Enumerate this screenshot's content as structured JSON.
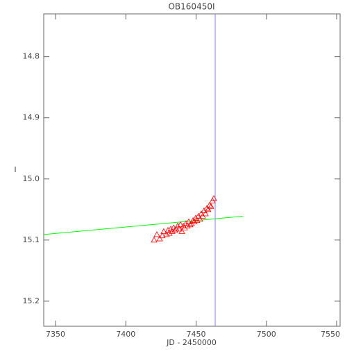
{
  "chart_data": {
    "type": "scatter",
    "title": "OB160450I",
    "x_label": "JD - 2450000",
    "y_label": "I",
    "xlim": [
      7341.6,
      7552.5
    ],
    "ylim": [
      15.241,
      14.73
    ],
    "xticks": [
      7350,
      7400,
      7450,
      7500,
      7550
    ],
    "yticks": [
      14.8,
      14.9,
      {
        "value": 15.0,
        "label": "15.0"
      },
      15.1,
      15.2
    ],
    "series": [
      {
        "color": "#ff0000",
        "marker": "triangle",
        "x": [
          7420.1,
          7422.1,
          7424.1,
          7426.0,
          7427.0,
          7429.0,
          7430.0,
          7431.0,
          7432.0,
          7433.0,
          7434.0,
          7434.9,
          7435.9,
          7436.9,
          7437.9,
          7438.9,
          7439.9,
          7440.9,
          7441.9,
          7442.8,
          7443.8,
          7444.8,
          7445.8,
          7446.8,
          7447.8,
          7448.8,
          7449.8,
          7450.7,
          7451.7,
          7452.7,
          7453.7,
          7454.7,
          7455.7,
          7456.7,
          7457.7,
          7458.6,
          7459.6,
          7460.6,
          7461.6,
          7462.6
        ],
        "values": [
          15.1,
          15.091,
          15.098,
          15.093,
          15.086,
          15.091,
          15.084,
          15.089,
          15.082,
          15.086,
          15.08,
          15.084,
          15.082,
          15.077,
          15.082,
          15.075,
          15.086,
          15.077,
          15.08,
          15.073,
          15.077,
          15.07,
          15.075,
          15.073,
          15.068,
          15.07,
          15.064,
          15.068,
          15.061,
          15.066,
          15.057,
          15.061,
          15.052,
          15.057,
          15.048,
          15.05,
          15.043,
          15.045,
          15.036,
          15.032
        ]
      }
    ],
    "lines": [
      {
        "color": "#00ff00",
        "x": [
          7341.6,
          7483.3
        ],
        "values": [
          15.091,
          15.061
        ]
      }
    ],
    "vlines": [
      {
        "color": "#8080ff",
        "x": 7463.6
      }
    ]
  }
}
